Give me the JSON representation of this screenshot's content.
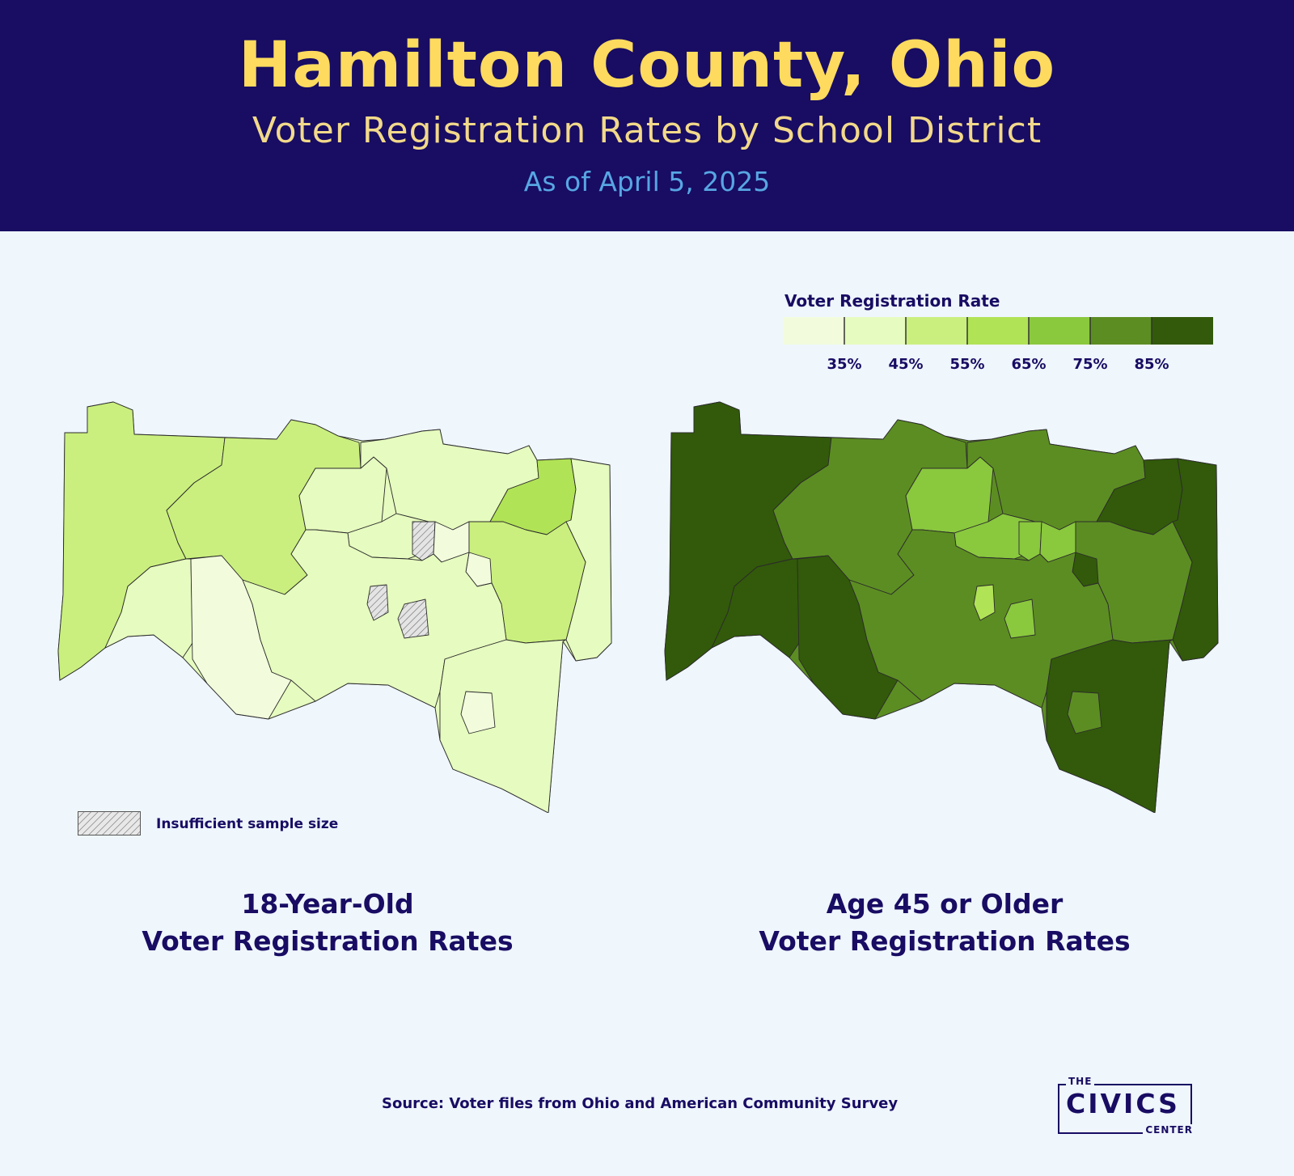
{
  "header": {
    "title": "Hamilton County, Ohio",
    "subtitle": "Voter Registration Rates by School District",
    "date": "As of April 5, 2025"
  },
  "legend": {
    "title": "Voter Registration Rate",
    "colors": [
      "#f2fcdc",
      "#e6fbbf",
      "#caef7e",
      "#b1e356",
      "#8ac83e",
      "#5c8d22",
      "#325a0a"
    ],
    "tick_labels": [
      "35%",
      "45%",
      "55%",
      "65%",
      "75%",
      "85%"
    ]
  },
  "hatch_legend": {
    "label": "Insufficient sample size"
  },
  "maps": {
    "left": {
      "caption_line1": "18-Year-Old",
      "caption_line2": "Voter Registration Rates"
    },
    "right": {
      "caption_line1": "Age 45 or Older",
      "caption_line2": "Voter Registration Rates"
    }
  },
  "source": "Source: Voter files from Ohio and American Community Survey",
  "logo": {
    "top": "THE",
    "main": "CIVICS",
    "bottom": "CENTER"
  }
}
